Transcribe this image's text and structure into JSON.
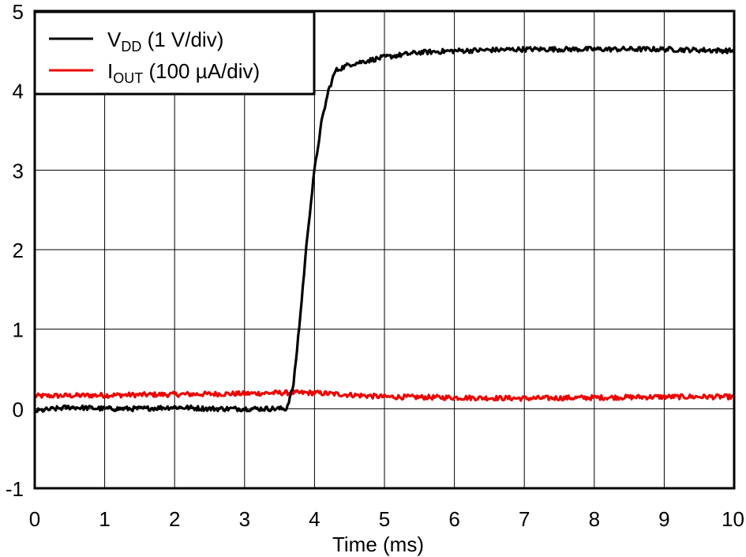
{
  "chart_data": {
    "type": "line",
    "xlabel": "Time (ms)",
    "ylabel": "",
    "xlim": [
      0,
      10
    ],
    "ylim": [
      -1,
      5
    ],
    "x_ticks": [
      "0",
      "1",
      "2",
      "3",
      "4",
      "5",
      "6",
      "7",
      "8",
      "9",
      "10"
    ],
    "y_ticks": [
      "-1",
      "0",
      "1",
      "2",
      "3",
      "4",
      "5"
    ],
    "grid": true,
    "legend_position": "top-left",
    "series": [
      {
        "name_main": "V",
        "name_sub": "DD",
        "name_rest": " (1 V/div)",
        "color": "#000000",
        "x": [
          0,
          0.5,
          1,
          1.5,
          2,
          2.5,
          3,
          3.4,
          3.6,
          3.7,
          3.8,
          3.9,
          4.0,
          4.1,
          4.2,
          4.3,
          4.5,
          5.0,
          5.5,
          6.0,
          7.0,
          8.0,
          9.0,
          10.0
        ],
        "y": [
          -0.03,
          0.02,
          0.0,
          0.0,
          0.02,
          0.0,
          0.0,
          0.0,
          0.0,
          0.3,
          1.2,
          2.2,
          3.0,
          3.6,
          4.0,
          4.25,
          4.33,
          4.42,
          4.48,
          4.5,
          4.52,
          4.52,
          4.52,
          4.5
        ]
      },
      {
        "name_main": "I",
        "name_sub": "OUT",
        "name_rest": " (100 µA/div)",
        "color": "#ee0000",
        "x": [
          0,
          1,
          2,
          3,
          3.5,
          4,
          5,
          6,
          7,
          8,
          9,
          10
        ],
        "y": [
          0.16,
          0.17,
          0.18,
          0.19,
          0.2,
          0.2,
          0.15,
          0.14,
          0.13,
          0.14,
          0.15,
          0.15
        ]
      }
    ]
  }
}
